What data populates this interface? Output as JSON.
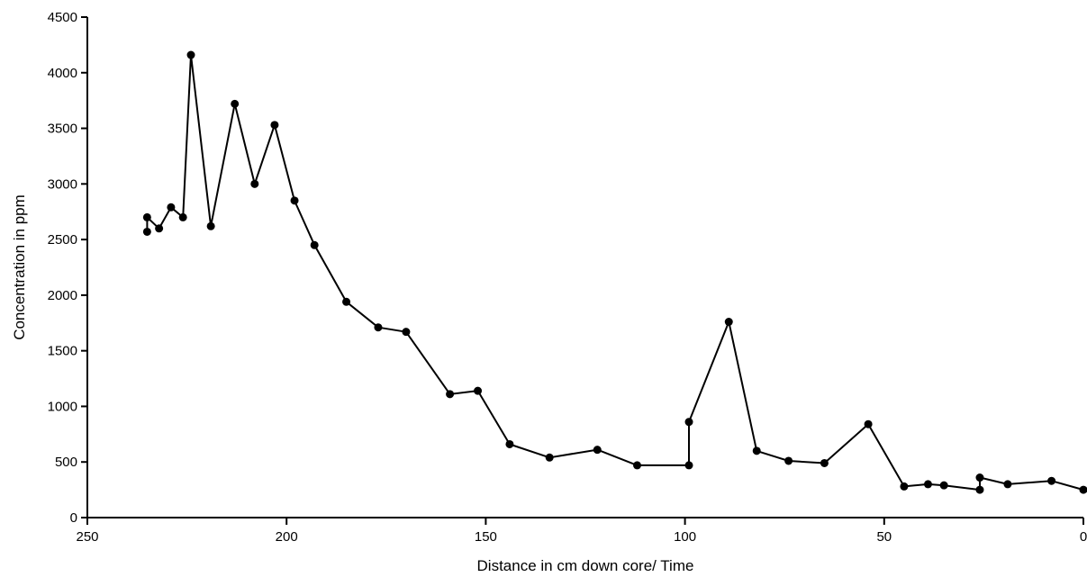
{
  "chart_data": {
    "type": "line",
    "title": "",
    "xlabel": "Distance in cm down core/ Time",
    "ylabel": "Concentration in ppm",
    "xlim": [
      250,
      0
    ],
    "ylim": [
      0,
      4500
    ],
    "x_reversed": true,
    "grid": false,
    "legend": "none",
    "xticks": [
      250,
      200,
      150,
      100,
      50,
      0
    ],
    "yticks": [
      0,
      500,
      1000,
      1500,
      2000,
      2500,
      3000,
      3500,
      4000,
      4500
    ],
    "series": [
      {
        "color": "#000000",
        "x": [
          235,
          235,
          232,
          229,
          226,
          224,
          219,
          213,
          208,
          203,
          198,
          193,
          185,
          177,
          170,
          159,
          152,
          144,
          134,
          122,
          112,
          99,
          99,
          89,
          82,
          74,
          65,
          54,
          45,
          39,
          35,
          26,
          26,
          19,
          8,
          0
        ],
        "y": [
          2570,
          2700,
          2600,
          2790,
          2700,
          4160,
          2620,
          3720,
          3000,
          3530,
          2850,
          2450,
          1940,
          1710,
          1670,
          1110,
          1140,
          660,
          540,
          610,
          470,
          470,
          860,
          1760,
          600,
          510,
          490,
          840,
          280,
          300,
          290,
          250,
          360,
          300,
          330,
          250
        ]
      }
    ]
  }
}
